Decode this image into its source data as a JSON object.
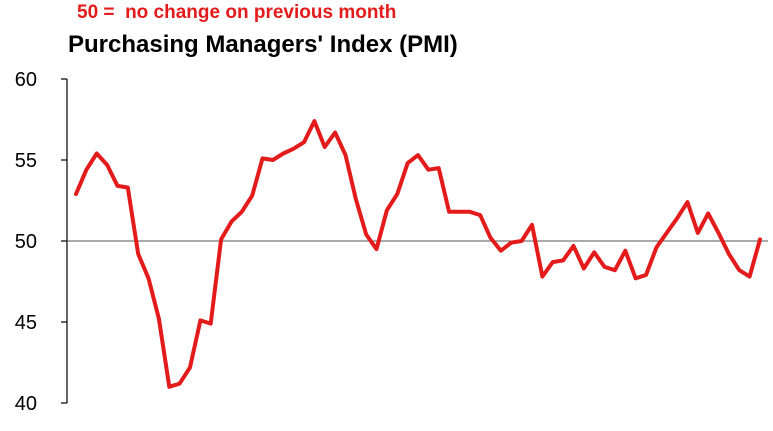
{
  "header": {
    "subtitle": "50 =  no change on previous month",
    "title": "Purchasing Managers' Index (PMI)"
  },
  "colors": {
    "accent": "#e31b1b",
    "axis": "#000000",
    "reference_line": "#555555"
  },
  "chart_data": {
    "type": "line",
    "title": "Purchasing Managers' Index (PMI)",
    "subtitle": "50 =  no change on previous month",
    "xlabel": "",
    "ylabel": "",
    "ylim": [
      40,
      60
    ],
    "yticks": [
      40,
      45,
      50,
      55,
      60
    ],
    "grid": false,
    "reference_line": 50,
    "series": [
      {
        "values": [
          52.9,
          54.4,
          55.4,
          54.7,
          53.4,
          53.3,
          49.2,
          47.7,
          45.2,
          41.0,
          41.2,
          42.2,
          45.1,
          44.9,
          50.1,
          51.2,
          51.8,
          52.8,
          55.1,
          55.0,
          55.4,
          55.7,
          56.1,
          57.4,
          55.8,
          56.7,
          55.3,
          52.6,
          50.4,
          49.5,
          51.9,
          52.9,
          54.8,
          55.3,
          54.4,
          54.5,
          51.8,
          51.8,
          51.8,
          51.6,
          50.2,
          49.4,
          49.9,
          50.0,
          51.0,
          47.8,
          48.7,
          48.8,
          49.7,
          48.3,
          49.3,
          48.4,
          48.2,
          49.4,
          47.7,
          47.9,
          49.6,
          50.5,
          51.4,
          52.4,
          50.5,
          51.7,
          50.5,
          49.2,
          48.2,
          47.8,
          50.1
        ]
      }
    ]
  }
}
